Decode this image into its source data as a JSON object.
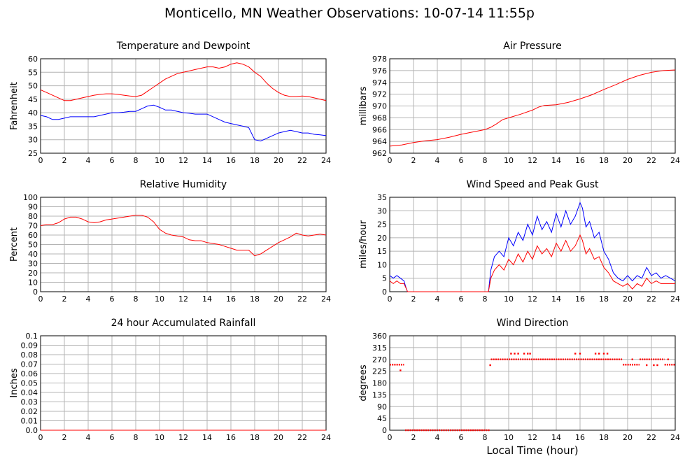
{
  "page": {
    "title": "Monticello, MN Weather Observations: 10-07-14 11:55p",
    "xlabel": "Local Time (hour)"
  },
  "colors": {
    "red": "#ff0000",
    "blue": "#0000ff",
    "grid": "#b4b4b4",
    "frame": "#000000"
  },
  "chart_data": [
    {
      "type": "line",
      "title": "Temperature and Dewpoint",
      "ylabel": "Fahrenheit",
      "xlim": [
        0,
        24
      ],
      "ylim": [
        25,
        60
      ],
      "xticks": [
        "0",
        "2",
        "4",
        "6",
        "8",
        "10",
        "12",
        "14",
        "16",
        "18",
        "20",
        "22",
        "24"
      ],
      "yticks": [
        "25",
        "30",
        "35",
        "40",
        "45",
        "50",
        "55",
        "60"
      ],
      "grid": true,
      "series": [
        {
          "color": "#ff0000",
          "x": [
            0,
            0.5,
            1,
            1.5,
            2,
            2.5,
            3,
            3.5,
            4,
            4.5,
            5,
            5.5,
            6,
            6.5,
            7,
            7.5,
            8,
            8.5,
            9,
            9.5,
            10,
            10.5,
            11,
            11.5,
            12,
            12.5,
            13,
            13.5,
            14,
            14.5,
            15,
            15.5,
            16,
            16.5,
            17,
            17.5,
            18,
            18.5,
            19,
            19.5,
            20,
            20.5,
            21,
            21.5,
            22,
            22.5,
            23,
            23.5,
            24
          ],
          "y": [
            48.5,
            47.5,
            46.5,
            45.5,
            44.5,
            44.5,
            45,
            45.5,
            46,
            46.5,
            46.8,
            47,
            47,
            46.8,
            46.5,
            46.2,
            46,
            46.5,
            48,
            49.5,
            51,
            52.5,
            53.5,
            54.5,
            55,
            55.5,
            56,
            56.5,
            57,
            57,
            56.5,
            57,
            58,
            58.5,
            58,
            57,
            55,
            53.5,
            51,
            49,
            47.5,
            46.5,
            46,
            46,
            46.2,
            46,
            45.5,
            45,
            44.5
          ]
        },
        {
          "color": "#0000ff",
          "x": [
            0,
            0.5,
            1,
            1.5,
            2,
            2.5,
            3,
            3.5,
            4,
            4.5,
            5,
            5.5,
            6,
            6.5,
            7,
            7.5,
            8,
            8.5,
            9,
            9.5,
            10,
            10.5,
            11,
            11.5,
            12,
            12.5,
            13,
            13.5,
            14,
            14.5,
            15,
            15.5,
            16,
            16.5,
            17,
            17.5,
            18,
            18.5,
            19,
            19.5,
            20,
            20.5,
            21,
            21.5,
            22,
            22.5,
            23,
            23.5,
            24
          ],
          "y": [
            39,
            38.5,
            37.5,
            37.5,
            38,
            38.5,
            38.5,
            38.5,
            38.5,
            38.5,
            39,
            39.5,
            40,
            40,
            40.2,
            40.5,
            40.5,
            41.5,
            42.5,
            42.8,
            42,
            41,
            41,
            40.5,
            40,
            39.8,
            39.5,
            39.5,
            39.5,
            38.5,
            37.5,
            36.5,
            36,
            35.5,
            35,
            34.5,
            30,
            29.5,
            30.5,
            31.5,
            32.5,
            33,
            33.5,
            33,
            32.5,
            32.5,
            32,
            31.8,
            31.5
          ]
        }
      ]
    },
    {
      "type": "line",
      "title": "Air Pressure",
      "ylabel": "millibars",
      "xlim": [
        0,
        24
      ],
      "ylim": [
        962,
        978
      ],
      "xticks": [
        "0",
        "2",
        "4",
        "6",
        "8",
        "10",
        "12",
        "14",
        "16",
        "18",
        "20",
        "22",
        "24"
      ],
      "yticks": [
        "962",
        "964",
        "966",
        "968",
        "970",
        "972",
        "974",
        "976",
        "978"
      ],
      "grid": true,
      "series": [
        {
          "color": "#ff0000",
          "x": [
            0,
            1,
            2,
            3,
            4,
            5,
            6,
            7,
            8,
            8.5,
            9,
            9.5,
            10,
            11,
            12,
            12.5,
            13,
            14,
            15,
            16,
            17,
            18,
            19,
            20,
            21,
            22,
            23,
            24
          ],
          "y": [
            963.2,
            963.4,
            963.8,
            964.1,
            964.3,
            964.7,
            965.2,
            965.6,
            966,
            966.4,
            967,
            967.7,
            968,
            968.6,
            969.3,
            969.8,
            970.1,
            970.2,
            970.6,
            971.2,
            971.9,
            972.8,
            973.6,
            974.5,
            975.2,
            975.7,
            976,
            976.1
          ]
        }
      ]
    },
    {
      "type": "line",
      "title": "Relative Humidity",
      "ylabel": "Percent",
      "xlim": [
        0,
        24
      ],
      "ylim": [
        0,
        100
      ],
      "xticks": [
        "0",
        "2",
        "4",
        "6",
        "8",
        "10",
        "12",
        "14",
        "16",
        "18",
        "20",
        "22",
        "24"
      ],
      "yticks": [
        "0",
        "10",
        "20",
        "30",
        "40",
        "50",
        "60",
        "70",
        "80",
        "90",
        "100"
      ],
      "grid": true,
      "series": [
        {
          "color": "#ff0000",
          "x": [
            0,
            0.5,
            1,
            1.5,
            2,
            2.5,
            3,
            3.5,
            4,
            4.5,
            5,
            5.5,
            6,
            6.5,
            7,
            7.5,
            8,
            8.5,
            9,
            9.5,
            10,
            10.5,
            11,
            11.5,
            12,
            12.5,
            13,
            13.5,
            14,
            14.5,
            15,
            15.5,
            16,
            16.5,
            17,
            17.5,
            18,
            18.5,
            19,
            19.5,
            20,
            20.5,
            21,
            21.5,
            22,
            22.5,
            23,
            23.5,
            24
          ],
          "y": [
            70,
            71,
            71,
            73,
            77,
            79,
            79,
            77,
            74,
            73,
            74,
            76,
            77,
            78,
            79,
            80,
            81,
            81,
            79,
            74,
            66,
            62,
            60,
            59,
            58,
            55,
            54,
            54,
            52,
            51,
            50,
            48,
            46,
            44,
            44,
            44,
            38,
            40,
            44,
            48,
            52,
            55,
            58,
            62,
            60,
            59,
            60,
            61,
            60
          ]
        }
      ]
    },
    {
      "type": "line",
      "title": "Wind Speed and Peak Gust",
      "ylabel": "miles/hour",
      "xlim": [
        0,
        24
      ],
      "ylim": [
        0,
        35
      ],
      "xticks": [
        "0",
        "2",
        "4",
        "6",
        "8",
        "10",
        "12",
        "14",
        "16",
        "18",
        "20",
        "22",
        "24"
      ],
      "yticks": [
        "0",
        "5",
        "10",
        "15",
        "20",
        "25",
        "30",
        "35"
      ],
      "grid": true,
      "series": [
        {
          "color": "#0000ff",
          "x": [
            0,
            0.3,
            0.6,
            0.9,
            1.2,
            1.4,
            1.5,
            8.3,
            8.5,
            8.8,
            9.2,
            9.6,
            10,
            10.4,
            10.8,
            11.2,
            11.6,
            12,
            12.4,
            12.8,
            13.2,
            13.6,
            14,
            14.4,
            14.8,
            15.2,
            15.6,
            16,
            16.2,
            16.5,
            16.8,
            17.2,
            17.6,
            18,
            18.4,
            18.8,
            19.2,
            19.6,
            20,
            20.4,
            20.8,
            21.2,
            21.6,
            22,
            22.4,
            22.8,
            23.2,
            23.6,
            24
          ],
          "y": [
            6,
            5,
            6,
            5,
            4,
            1,
            0,
            0,
            8,
            13,
            15,
            13,
            20,
            17,
            22,
            19,
            25,
            21,
            28,
            23,
            26,
            22,
            29,
            24,
            30,
            25,
            28,
            33,
            31,
            24,
            26,
            20,
            22,
            15,
            12,
            7,
            5,
            4,
            6,
            4,
            6,
            5,
            9,
            6,
            7,
            5,
            6,
            5,
            4
          ]
        },
        {
          "color": "#ff0000",
          "x": [
            0,
            0.3,
            0.6,
            0.9,
            1.2,
            1.4,
            1.5,
            8.3,
            8.5,
            8.8,
            9.2,
            9.6,
            10,
            10.4,
            10.8,
            11.2,
            11.6,
            12,
            12.4,
            12.8,
            13.2,
            13.6,
            14,
            14.4,
            14.8,
            15.2,
            15.6,
            16,
            16.2,
            16.5,
            16.8,
            17.2,
            17.6,
            18,
            18.4,
            18.8,
            19.2,
            19.6,
            20,
            20.4,
            20.8,
            21.2,
            21.6,
            22,
            22.4,
            22.8,
            23.2,
            23.6,
            24
          ],
          "y": [
            4,
            3,
            4,
            3,
            3,
            1,
            0,
            0,
            5,
            8,
            10,
            8,
            12,
            10,
            14,
            11,
            15,
            12,
            17,
            14,
            16,
            13,
            18,
            15,
            19,
            15,
            17,
            21,
            19,
            14,
            16,
            12,
            13,
            9,
            7,
            4,
            3,
            2,
            3,
            1,
            3,
            2,
            5,
            3,
            4,
            3,
            3,
            3,
            3
          ]
        }
      ]
    },
    {
      "type": "line",
      "title": "24 hour Accumulated Rainfall",
      "ylabel": "Inches",
      "xlim": [
        0,
        24
      ],
      "ylim": [
        0,
        0.1
      ],
      "xticks": [
        "0",
        "2",
        "4",
        "6",
        "8",
        "10",
        "12",
        "14",
        "16",
        "18",
        "20",
        "22",
        "24"
      ],
      "yticks": [
        "0.0",
        "0.01",
        "0.02",
        "0.03",
        "0.04",
        "0.05",
        "0.06",
        "0.07",
        "0.08",
        "0.09",
        "0.1"
      ],
      "grid": true,
      "series": [
        {
          "color": "#ff0000",
          "x": [
            0,
            24
          ],
          "y": [
            0,
            0
          ]
        }
      ]
    },
    {
      "type": "scatter",
      "title": "Wind Direction",
      "ylabel": "degrees",
      "xlim": [
        0,
        24
      ],
      "ylim": [
        0,
        360
      ],
      "xticks": [
        "0",
        "2",
        "4",
        "6",
        "8",
        "10",
        "12",
        "14",
        "16",
        "18",
        "20",
        "22",
        "24"
      ],
      "yticks": [
        "0",
        "45",
        "90",
        "135",
        "180",
        "225",
        "270",
        "315",
        "360"
      ],
      "grid": true,
      "segments": [
        {
          "x0": 0,
          "x1": 1.2,
          "y": 250
        },
        {
          "x0": 1.3,
          "x1": 8.4,
          "y": 0
        },
        {
          "x0": 8.5,
          "x1": 19.6,
          "y": 270
        },
        {
          "x0": 19.6,
          "x1": 21,
          "y": 250
        },
        {
          "x0": 21,
          "x1": 23.1,
          "y": 270
        },
        {
          "x0": 23.1,
          "x1": 24,
          "y": 250
        }
      ],
      "points": [
        {
          "x": 0.9,
          "y": 228
        },
        {
          "x": 8.45,
          "y": 248
        },
        {
          "x": 10.2,
          "y": 292
        },
        {
          "x": 10.5,
          "y": 292
        },
        {
          "x": 10.8,
          "y": 292
        },
        {
          "x": 11.3,
          "y": 292
        },
        {
          "x": 11.6,
          "y": 292
        },
        {
          "x": 11.8,
          "y": 292
        },
        {
          "x": 15.6,
          "y": 292
        },
        {
          "x": 16,
          "y": 292
        },
        {
          "x": 17.3,
          "y": 292
        },
        {
          "x": 17.6,
          "y": 292
        },
        {
          "x": 18,
          "y": 292
        },
        {
          "x": 18.3,
          "y": 292
        },
        {
          "x": 20.4,
          "y": 270
        },
        {
          "x": 21.6,
          "y": 248
        },
        {
          "x": 22.2,
          "y": 248
        },
        {
          "x": 22.5,
          "y": 248
        },
        {
          "x": 23.4,
          "y": 270
        }
      ]
    }
  ]
}
